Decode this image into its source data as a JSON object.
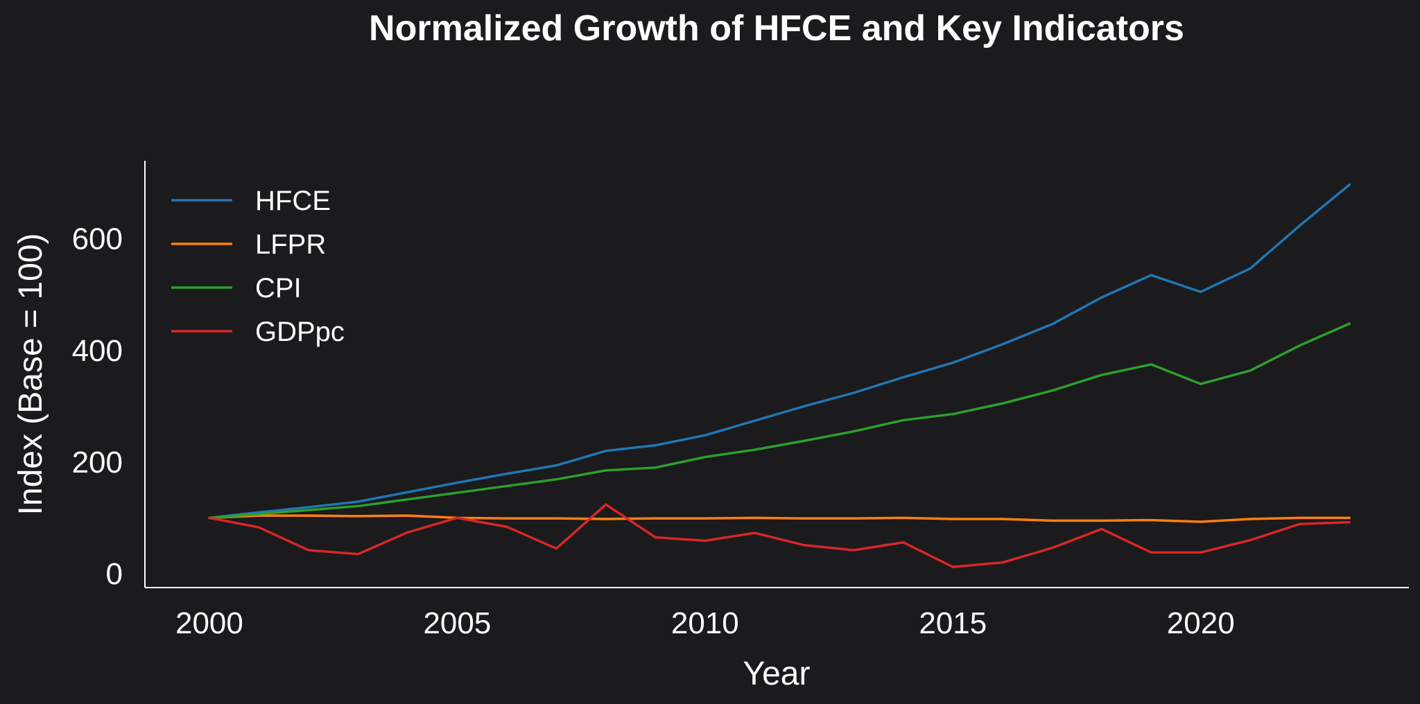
{
  "chart_data": {
    "type": "line",
    "title": "Normalized Growth of HFCE and Key Indicators",
    "xlabel": "Year",
    "ylabel": "Index (Base = 100)",
    "x": [
      2000,
      2001,
      2002,
      2003,
      2004,
      2005,
      2006,
      2007,
      2008,
      2009,
      2010,
      2011,
      2012,
      2013,
      2014,
      2015,
      2016,
      2017,
      2018,
      2019,
      2020,
      2021,
      2022,
      2023
    ],
    "xlim": [
      1998.7,
      2024.2
    ],
    "ylim": [
      -25,
      740
    ],
    "xticks": [
      2000,
      2005,
      2010,
      2015,
      2020
    ],
    "yticks": [
      0,
      200,
      400,
      600
    ],
    "grid": false,
    "legend_position": "top-left",
    "series": [
      {
        "name": "HFCE",
        "color": "#1f77b4",
        "values": [
          100,
          110,
          119,
          129,
          146,
          163,
          179,
          194,
          220,
          230,
          248,
          274,
          300,
          324,
          352,
          378,
          411,
          447,
          495,
          535,
          505,
          547,
          624,
          697
        ]
      },
      {
        "name": "LFPR",
        "color": "#ff7f0e",
        "values": [
          100,
          104,
          104,
          103,
          104,
          100,
          99,
          99,
          98,
          99,
          99,
          100,
          99,
          99,
          100,
          98,
          98,
          95,
          95,
          96,
          93,
          98,
          100,
          100
        ]
      },
      {
        "name": "CPI",
        "color": "#2ca02c",
        "values": [
          100,
          107,
          114,
          121,
          133,
          145,
          157,
          169,
          185,
          190,
          209,
          222,
          238,
          255,
          275,
          286,
          305,
          328,
          356,
          375,
          340,
          364,
          409,
          448
        ]
      },
      {
        "name": "GDPpc",
        "color": "#d62728",
        "values": [
          100,
          83,
          42,
          35,
          74,
          100,
          84,
          45,
          124,
          65,
          59,
          73,
          51,
          42,
          56,
          12,
          20,
          46,
          80,
          38,
          38,
          60,
          89,
          92
        ]
      }
    ]
  }
}
